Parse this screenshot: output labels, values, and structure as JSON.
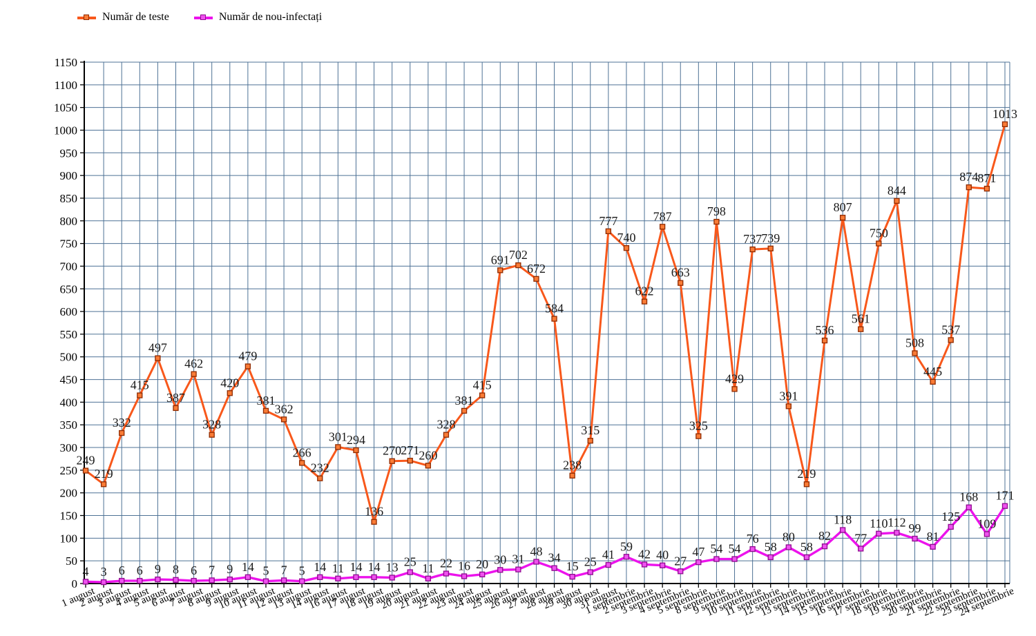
{
  "legend": {
    "items": [
      {
        "label": "Număr de teste"
      },
      {
        "label": "Număr de nou-infectați"
      }
    ]
  },
  "chart_data": {
    "type": "line",
    "title": "",
    "xlabel": "",
    "ylabel": "",
    "ylim": [
      0,
      1150
    ],
    "ytick_step": 50,
    "grid": true,
    "grid_color": "#4D7195",
    "axis_color": "#000000",
    "value_label_color": "#181818",
    "legend_position": "top-left",
    "categories": [
      "1 august",
      "2 august",
      "3 august",
      "4 august",
      "5 august",
      "6 august",
      "7 august",
      "8 august",
      "9 august",
      "10 august",
      "11 august",
      "12 august",
      "13 august",
      "14 august",
      "16 august",
      "17 august",
      "18 august",
      "19 august",
      "20 august",
      "21 august",
      "22 august",
      "23 august",
      "24 august",
      "25 august",
      "26 august",
      "27 august",
      "28 august",
      "29 august",
      "30 august",
      "31 august",
      "1 septembrie",
      "2 septembrie",
      "3 septembrie",
      "4 septembrie",
      "5 septembrie",
      "8 septembrie",
      "9 septembrie",
      "10 septembrie",
      "11 septembrie",
      "12 septembrie",
      "13 septembrie",
      "14 septembrie",
      "15 septembrie",
      "16 septembrie",
      "17 septembrie",
      "18 septembrie",
      "19 septembrie",
      "20 septembrie",
      "21 septembrie",
      "22 septembrie",
      "23 septembrie",
      "24 septembrie"
    ],
    "series": [
      {
        "name": "Număr de teste",
        "color": "#F8581B",
        "marker_fill": "#F97B36",
        "marker_stroke": "#8E2A00",
        "values": [
          249,
          219,
          332,
          415,
          497,
          387,
          462,
          328,
          420,
          479,
          381,
          362,
          266,
          232,
          301,
          294,
          136,
          270,
          271,
          260,
          328,
          381,
          415,
          691,
          702,
          672,
          584,
          238,
          315,
          777,
          740,
          622,
          787,
          663,
          325,
          798,
          429,
          737,
          739,
          391,
          219,
          536,
          807,
          561,
          750,
          844,
          508,
          445,
          537,
          874,
          871,
          1013
        ]
      },
      {
        "name": "Număr de nou-infectați",
        "color": "#EC13EC",
        "marker_fill": "#EF52EF",
        "marker_stroke": "#8F0A8F",
        "values": [
          4,
          3,
          6,
          6,
          9,
          8,
          6,
          7,
          9,
          14,
          5,
          7,
          5,
          14,
          11,
          14,
          14,
          13,
          25,
          11,
          22,
          16,
          20,
          30,
          31,
          48,
          34,
          15,
          25,
          41,
          59,
          42,
          40,
          27,
          47,
          54,
          54,
          76,
          58,
          80,
          58,
          82,
          118,
          77,
          110,
          112,
          99,
          81,
          125,
          168,
          109,
          171
        ]
      }
    ]
  }
}
